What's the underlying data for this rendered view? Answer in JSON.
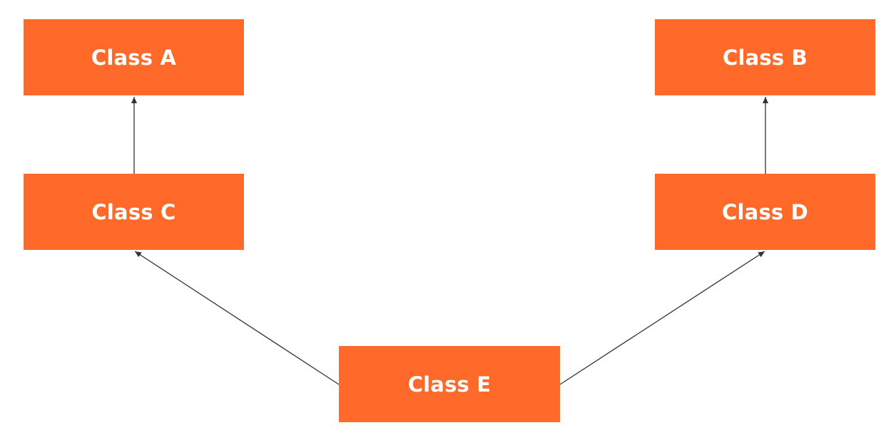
{
  "colors": {
    "box_fill": "#ff6a2b",
    "box_text": "#ffffff",
    "arrow": "#333333",
    "background": "#ffffff"
  },
  "diagram": {
    "nodes": {
      "a": {
        "label": "Class A"
      },
      "b": {
        "label": "Class B"
      },
      "c": {
        "label": "Class C"
      },
      "d": {
        "label": "Class D"
      },
      "e": {
        "label": "Class E"
      }
    },
    "edges": [
      {
        "from": "c",
        "to": "a"
      },
      {
        "from": "d",
        "to": "b"
      },
      {
        "from": "e",
        "to": "c"
      },
      {
        "from": "e",
        "to": "d"
      }
    ]
  }
}
